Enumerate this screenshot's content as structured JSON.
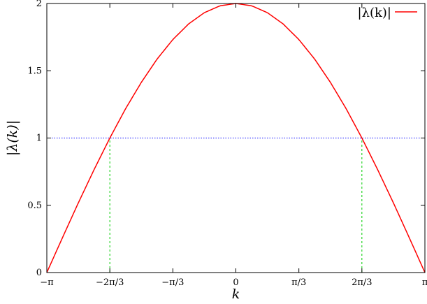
{
  "chart_data": {
    "type": "line",
    "xlabel": "k",
    "ylabel": "|λ(k)|",
    "xlim": [
      -3.14159265,
      3.14159265
    ],
    "ylim": [
      0,
      2
    ],
    "grid": false,
    "legend_placement": "top-right",
    "x_ticks": [
      {
        "value": -3.14159265,
        "label": "−π"
      },
      {
        "value": -2.0943951,
        "label": "−2π/3"
      },
      {
        "value": -1.04719755,
        "label": "−π/3"
      },
      {
        "value": 0,
        "label": "0"
      },
      {
        "value": 1.04719755,
        "label": "π/3"
      },
      {
        "value": 2.0943951,
        "label": "2π/3"
      },
      {
        "value": 3.14159265,
        "label": "π"
      }
    ],
    "y_ticks": [
      {
        "value": 0,
        "label": "0"
      },
      {
        "value": 0.5,
        "label": "0.5"
      },
      {
        "value": 1,
        "label": "1"
      },
      {
        "value": 1.5,
        "label": "1.5"
      },
      {
        "value": 2,
        "label": "2"
      }
    ],
    "series": [
      {
        "name": "|λ(k)|",
        "color": "#ff0000",
        "style": "solid",
        "x": [
          -3.14159,
          -2.87979,
          -2.61799,
          -2.35619,
          -2.0944,
          -1.8326,
          -1.5708,
          -1.309,
          -1.0472,
          -0.7854,
          -0.5236,
          -0.2618,
          0,
          0.2618,
          0.5236,
          0.7854,
          1.0472,
          1.309,
          1.5708,
          1.8326,
          2.0944,
          2.35619,
          2.61799,
          2.87979,
          3.14159
        ],
        "y": [
          0,
          0.261,
          0.518,
          0.765,
          1.0,
          1.218,
          1.414,
          1.587,
          1.732,
          1.848,
          1.932,
          1.983,
          2.0,
          1.983,
          1.932,
          1.848,
          1.732,
          1.587,
          1.414,
          1.218,
          1.0,
          0.765,
          0.518,
          0.261,
          0
        ]
      }
    ],
    "reference_lines": [
      {
        "orientation": "horizontal",
        "y": 1,
        "color": "#0000ff",
        "style": "dotted"
      },
      {
        "orientation": "vertical",
        "x": -2.0943951,
        "y_range": [
          0,
          1
        ],
        "color": "#00cc00",
        "style": "dashed"
      },
      {
        "orientation": "vertical",
        "x": 2.0943951,
        "y_range": [
          0,
          1
        ],
        "color": "#00cc00",
        "style": "dashed"
      }
    ],
    "legend": {
      "label": "|λ(k)|",
      "color": "#ff0000"
    }
  }
}
